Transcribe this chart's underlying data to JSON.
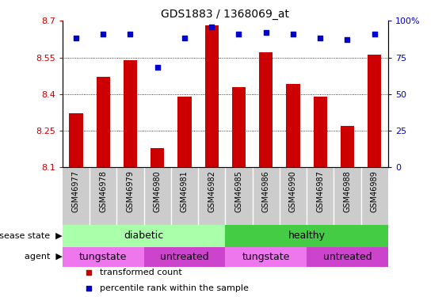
{
  "title": "GDS1883 / 1368069_at",
  "samples": [
    "GSM46977",
    "GSM46978",
    "GSM46979",
    "GSM46980",
    "GSM46981",
    "GSM46982",
    "GSM46985",
    "GSM46986",
    "GSM46990",
    "GSM46987",
    "GSM46988",
    "GSM46989"
  ],
  "transformed_count": [
    8.32,
    8.47,
    8.54,
    8.18,
    8.39,
    8.68,
    8.43,
    8.57,
    8.44,
    8.39,
    8.27,
    8.56
  ],
  "percentile": [
    88,
    91,
    91,
    68,
    88,
    96,
    91,
    92,
    91,
    88,
    87,
    91
  ],
  "ylim": [
    8.1,
    8.7
  ],
  "yticks": [
    8.1,
    8.25,
    8.4,
    8.55,
    8.7
  ],
  "right_ytick_labels": [
    "0",
    "25",
    "50",
    "75",
    "100%"
  ],
  "bar_color": "#cc0000",
  "dot_color": "#0000cc",
  "disease_colors_diabetic": "#aaffaa",
  "disease_colors_healthy": "#44cc44",
  "agent_color_tungstate": "#ee77ee",
  "agent_color_untreated": "#cc44cc",
  "legend_items": [
    {
      "label": "transformed count",
      "color": "#cc0000"
    },
    {
      "label": "percentile rank within the sample",
      "color": "#0000cc"
    }
  ],
  "xtick_bg_color": "#cccccc",
  "bar_width": 0.5
}
